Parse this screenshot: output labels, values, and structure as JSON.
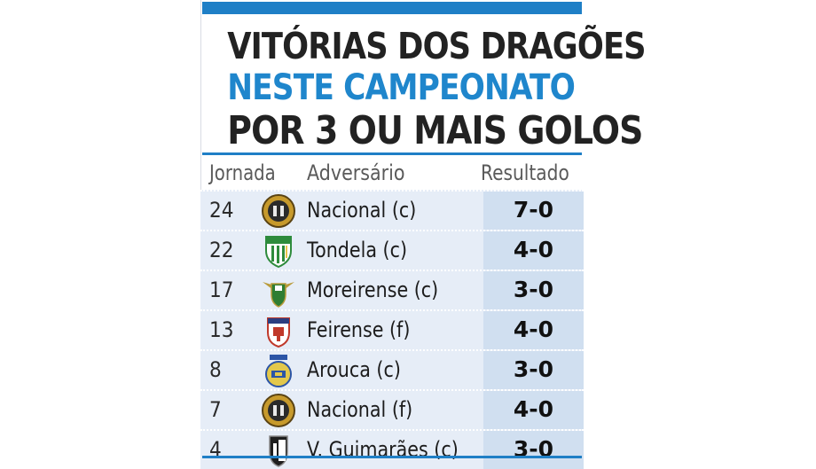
{
  "title": {
    "line1": "VITÓRIAS DOS DRAGÕES",
    "line2": "NESTE CAMPEONATO",
    "line3": "POR 3 OU MAIS GOLOS"
  },
  "columns": {
    "jornada": "Jornada",
    "adversario": "Adversário",
    "resultado": "Resultado"
  },
  "rows": [
    {
      "jornada": "24",
      "adversario": "Nacional (c)",
      "resultado": "7-0",
      "crest_icon": "nacional-crest-icon"
    },
    {
      "jornada": "22",
      "adversario": "Tondela (c)",
      "resultado": "4-0",
      "crest_icon": "tondela-crest-icon"
    },
    {
      "jornada": "17",
      "adversario": "Moreirense (c)",
      "resultado": "3-0",
      "crest_icon": "moreirense-crest-icon"
    },
    {
      "jornada": "13",
      "adversario": "Feirense (f)",
      "resultado": "4-0",
      "crest_icon": "feirense-crest-icon"
    },
    {
      "jornada": "8",
      "adversario": "Arouca (c)",
      "resultado": "3-0",
      "crest_icon": "arouca-crest-icon"
    },
    {
      "jornada": "7",
      "adversario": "Nacional (f)",
      "resultado": "4-0",
      "crest_icon": "nacional-crest-icon"
    },
    {
      "jornada": "4",
      "adversario": "V. Guimarães (c)",
      "resultado": "3-0",
      "crest_icon": "guimaraes-crest-icon"
    }
  ],
  "colors": {
    "accent_blue": "#1f7fc6",
    "row_bg": "#e6edf7",
    "result_bg": "#d0dff0"
  }
}
